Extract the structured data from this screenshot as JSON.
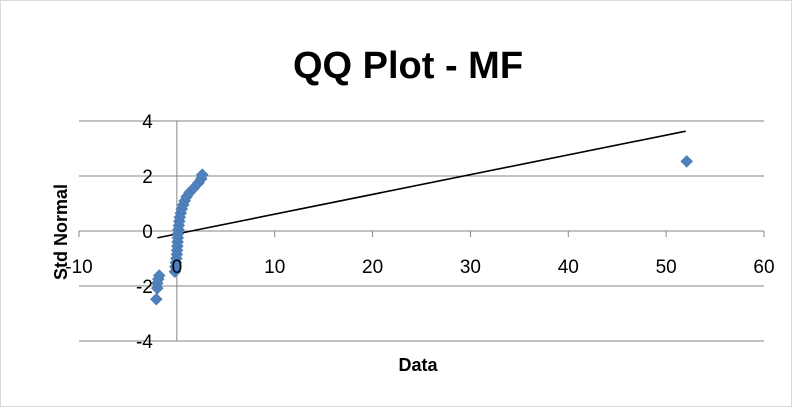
{
  "chart_data": {
    "type": "scatter",
    "title": "QQ Plot - MF",
    "xlabel": "Data",
    "ylabel": "Std Normal",
    "xlim": [
      -10,
      60
    ],
    "ylim": [
      -4,
      4
    ],
    "x_ticks": [
      "-10",
      "0",
      "10",
      "20",
      "30",
      "40",
      "50",
      "60"
    ],
    "y_ticks": [
      "4",
      "2",
      "0",
      "-2",
      "-4"
    ],
    "grid": "horizontal",
    "legend": "none",
    "colors": {
      "points": "#4F81BD",
      "line": "#000000",
      "grid": "#868686"
    },
    "points": [
      {
        "x": -2.1,
        "y": -2.48
      },
      {
        "x": -2.0,
        "y": -2.08
      },
      {
        "x": -2.0,
        "y": -1.9
      },
      {
        "x": -1.9,
        "y": -1.75
      },
      {
        "x": -1.8,
        "y": -1.62
      },
      {
        "x": -0.2,
        "y": -1.48
      },
      {
        "x": -0.15,
        "y": -1.3
      },
      {
        "x": -0.1,
        "y": -1.15
      },
      {
        "x": -0.05,
        "y": -1.0
      },
      {
        "x": 0.0,
        "y": -0.85
      },
      {
        "x": 0.02,
        "y": -0.7
      },
      {
        "x": 0.05,
        "y": -0.55
      },
      {
        "x": 0.08,
        "y": -0.4
      },
      {
        "x": 0.1,
        "y": -0.25
      },
      {
        "x": 0.12,
        "y": -0.1
      },
      {
        "x": 0.15,
        "y": 0.05
      },
      {
        "x": 0.2,
        "y": 0.2
      },
      {
        "x": 0.25,
        "y": 0.35
      },
      {
        "x": 0.3,
        "y": 0.5
      },
      {
        "x": 0.4,
        "y": 0.65
      },
      {
        "x": 0.5,
        "y": 0.8
      },
      {
        "x": 0.65,
        "y": 0.95
      },
      {
        "x": 0.8,
        "y": 1.1
      },
      {
        "x": 1.0,
        "y": 1.25
      },
      {
        "x": 1.3,
        "y": 1.4
      },
      {
        "x": 1.7,
        "y": 1.55
      },
      {
        "x": 2.2,
        "y": 1.75
      },
      {
        "x": 2.5,
        "y": 1.9
      },
      {
        "x": 2.6,
        "y": 2.05
      },
      {
        "x": 52.1,
        "y": 2.53
      }
    ],
    "trendline": {
      "x": [
        -2.0,
        52.0
      ],
      "y": [
        -0.25,
        3.63
      ]
    }
  }
}
